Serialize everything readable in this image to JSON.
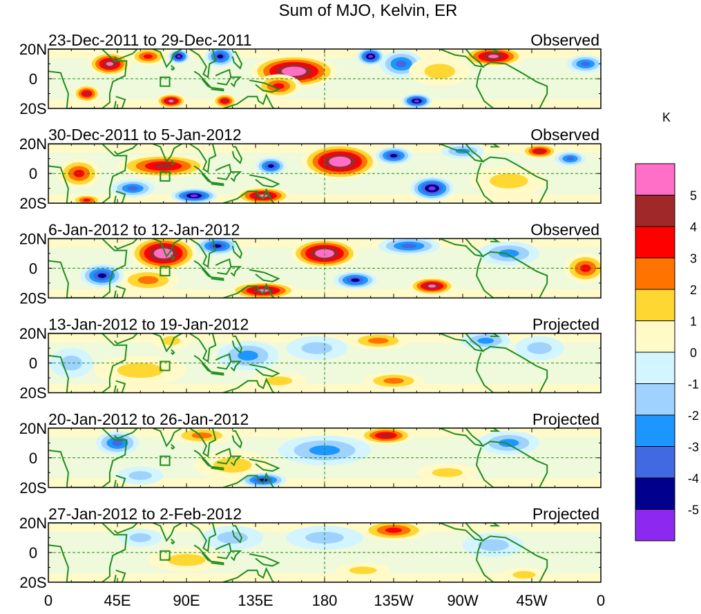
{
  "chart_data": {
    "type": "heatmap",
    "title": "Sum of MJO, Kelvin, ER",
    "units_label": "K",
    "y_ticks": [
      "20N",
      "0",
      "20S"
    ],
    "x_ticks": [
      "0",
      "45E",
      "90E",
      "135E",
      "180",
      "135W",
      "90W",
      "45W",
      "0"
    ],
    "xlim_deg": [
      0,
      360
    ],
    "ylim_deg": [
      -20,
      20
    ],
    "colorbar": {
      "labels": [
        "5",
        "4",
        "3",
        "2",
        "1",
        "0",
        "-1",
        "-2",
        "-3",
        "-4",
        "-5"
      ],
      "levels_top_to_bottom": [
        {
          "range": [
            5,
            99
          ],
          "color": "#ff6ec7"
        },
        {
          "range": [
            4,
            5
          ],
          "color": "#a02828"
        },
        {
          "range": [
            3,
            4
          ],
          "color": "#ff0000"
        },
        {
          "range": [
            2,
            3
          ],
          "color": "#ff7300"
        },
        {
          "range": [
            1,
            2
          ],
          "color": "#ffd732"
        },
        {
          "range": [
            0,
            1
          ],
          "color": "#fffac8"
        },
        {
          "range": [
            -1,
            0
          ],
          "color": "#d2f5ff"
        },
        {
          "range": [
            -2,
            -1
          ],
          "color": "#a0d2ff"
        },
        {
          "range": [
            -3,
            -2
          ],
          "color": "#1e96ff"
        },
        {
          "range": [
            -4,
            -3
          ],
          "color": "#4169e1"
        },
        {
          "range": [
            -5,
            -4
          ],
          "color": "#00008c"
        },
        {
          "range": [
            -99,
            -5
          ],
          "color": "#8c28f0"
        }
      ]
    },
    "panels": [
      {
        "period": "23-Dec-2011 to 29-Dec-2011",
        "status": "Observed",
        "anomalies": [
          {
            "lon": 40,
            "lat": 10,
            "value": 6.0,
            "rx": 14,
            "ry": 8
          },
          {
            "lon": 25,
            "lat": -10,
            "value": 4.5,
            "rx": 9,
            "ry": 6
          },
          {
            "lon": 65,
            "lat": 15,
            "value": 4.0,
            "rx": 12,
            "ry": 6
          },
          {
            "lon": 80,
            "lat": -15,
            "value": 5.5,
            "rx": 10,
            "ry": 5
          },
          {
            "lon": 115,
            "lat": -15,
            "value": 5.0,
            "rx": 8,
            "ry": 5
          },
          {
            "lon": 85,
            "lat": 15,
            "value": -6.0,
            "rx": 7,
            "ry": 5
          },
          {
            "lon": 112,
            "lat": 15,
            "value": -5.0,
            "rx": 10,
            "ry": 7
          },
          {
            "lon": 160,
            "lat": 5,
            "value": 6.5,
            "rx": 28,
            "ry": 11
          },
          {
            "lon": 150,
            "lat": -5,
            "value": 3.5,
            "rx": 15,
            "ry": 8
          },
          {
            "lon": 210,
            "lat": 15,
            "value": -6.0,
            "rx": 9,
            "ry": 6
          },
          {
            "lon": 230,
            "lat": 10,
            "value": -4.0,
            "rx": 14,
            "ry": 9
          },
          {
            "lon": 240,
            "lat": -15,
            "value": -5.5,
            "rx": 10,
            "ry": 5
          },
          {
            "lon": 290,
            "lat": 15,
            "value": 6.0,
            "rx": 20,
            "ry": 7
          },
          {
            "lon": 350,
            "lat": 10,
            "value": -4.0,
            "rx": 12,
            "ry": 6
          },
          {
            "lon": 255,
            "lat": 5,
            "value": 1.5,
            "rx": 20,
            "ry": 10
          }
        ]
      },
      {
        "period": "30-Dec-2011 to 5-Jan-2012",
        "status": "Observed",
        "anomalies": [
          {
            "lon": 20,
            "lat": 0,
            "value": 3.5,
            "rx": 14,
            "ry": 10
          },
          {
            "lon": 75,
            "lat": 5,
            "value": 4.5,
            "rx": 30,
            "ry": 8
          },
          {
            "lon": 55,
            "lat": -10,
            "value": -3.5,
            "rx": 14,
            "ry": 6
          },
          {
            "lon": 25,
            "lat": -18,
            "value": 4.0,
            "rx": 10,
            "ry": 4
          },
          {
            "lon": 95,
            "lat": -15,
            "value": -5.5,
            "rx": 15,
            "ry": 5
          },
          {
            "lon": 145,
            "lat": 5,
            "value": -5.0,
            "rx": 10,
            "ry": 6
          },
          {
            "lon": 140,
            "lat": -15,
            "value": 6.0,
            "rx": 18,
            "ry": 6
          },
          {
            "lon": 190,
            "lat": 8,
            "value": 6.5,
            "rx": 25,
            "ry": 12
          },
          {
            "lon": 225,
            "lat": 12,
            "value": -4.5,
            "rx": 12,
            "ry": 6
          },
          {
            "lon": 250,
            "lat": -10,
            "value": -5.5,
            "rx": 14,
            "ry": 8
          },
          {
            "lon": 270,
            "lat": 15,
            "value": -3.0,
            "rx": 14,
            "ry": 5
          },
          {
            "lon": 320,
            "lat": 15,
            "value": 4.5,
            "rx": 12,
            "ry": 5
          },
          {
            "lon": 340,
            "lat": 10,
            "value": -4.0,
            "rx": 10,
            "ry": 5
          },
          {
            "lon": 300,
            "lat": -5,
            "value": 1.5,
            "rx": 25,
            "ry": 10
          }
        ]
      },
      {
        "period": "6-Jan-2012 to 12-Jan-2012",
        "status": "Observed",
        "anomalies": [
          {
            "lon": 75,
            "lat": 10,
            "value": 6.5,
            "rx": 22,
            "ry": 12
          },
          {
            "lon": 65,
            "lat": -8,
            "value": 3.0,
            "rx": 20,
            "ry": 8
          },
          {
            "lon": 35,
            "lat": -5,
            "value": -4.5,
            "rx": 14,
            "ry": 8
          },
          {
            "lon": 110,
            "lat": 15,
            "value": -5.0,
            "rx": 14,
            "ry": 6
          },
          {
            "lon": 140,
            "lat": -15,
            "value": 6.0,
            "rx": 22,
            "ry": 6
          },
          {
            "lon": 180,
            "lat": 10,
            "value": 6.5,
            "rx": 22,
            "ry": 10
          },
          {
            "lon": 200,
            "lat": -8,
            "value": -4.5,
            "rx": 14,
            "ry": 6
          },
          {
            "lon": 250,
            "lat": -12,
            "value": 6.0,
            "rx": 15,
            "ry": 6
          },
          {
            "lon": 235,
            "lat": 15,
            "value": -4.0,
            "rx": 20,
            "ry": 6
          },
          {
            "lon": 350,
            "lat": 0,
            "value": 4.0,
            "rx": 14,
            "ry": 10
          },
          {
            "lon": 300,
            "lat": 10,
            "value": -3.0,
            "rx": 20,
            "ry": 8
          }
        ]
      },
      {
        "period": "13-Jan-2012 to 19-Jan-2012",
        "status": "Projected",
        "anomalies": [
          {
            "lon": 80,
            "lat": 15,
            "value": 2.0,
            "rx": 12,
            "ry": 6
          },
          {
            "lon": 60,
            "lat": -5,
            "value": 1.5,
            "rx": 30,
            "ry": 10
          },
          {
            "lon": 130,
            "lat": 5,
            "value": -2.5,
            "rx": 20,
            "ry": 10
          },
          {
            "lon": 175,
            "lat": 10,
            "value": -2.0,
            "rx": 20,
            "ry": 8
          },
          {
            "lon": 215,
            "lat": 15,
            "value": 2.5,
            "rx": 20,
            "ry": 6
          },
          {
            "lon": 225,
            "lat": -12,
            "value": 3.0,
            "rx": 20,
            "ry": 6
          },
          {
            "lon": 285,
            "lat": 15,
            "value": -2.5,
            "rx": 16,
            "ry": 6
          },
          {
            "lon": 320,
            "lat": 10,
            "value": -2.0,
            "rx": 16,
            "ry": 8
          },
          {
            "lon": 15,
            "lat": 0,
            "value": -2.0,
            "rx": 14,
            "ry": 10
          },
          {
            "lon": 150,
            "lat": -12,
            "value": 1.5,
            "rx": 18,
            "ry": 6
          }
        ]
      },
      {
        "period": "20-Jan-2012 to 26-Jan-2012",
        "status": "Projected",
        "anomalies": [
          {
            "lon": 45,
            "lat": 10,
            "value": -4.0,
            "rx": 14,
            "ry": 8
          },
          {
            "lon": 100,
            "lat": 15,
            "value": 2.5,
            "rx": 20,
            "ry": 6
          },
          {
            "lon": 120,
            "lat": -5,
            "value": 1.5,
            "rx": 25,
            "ry": 10
          },
          {
            "lon": 140,
            "lat": -15,
            "value": -4.5,
            "rx": 15,
            "ry": 5
          },
          {
            "lon": 220,
            "lat": 15,
            "value": 4.5,
            "rx": 18,
            "ry": 6
          },
          {
            "lon": 180,
            "lat": 5,
            "value": -2.5,
            "rx": 30,
            "ry": 10
          },
          {
            "lon": 260,
            "lat": -10,
            "value": 2.0,
            "rx": 20,
            "ry": 6
          },
          {
            "lon": 300,
            "lat": 10,
            "value": -2.5,
            "rx": 20,
            "ry": 8
          },
          {
            "lon": 60,
            "lat": -12,
            "value": -2.0,
            "rx": 15,
            "ry": 6
          }
        ]
      },
      {
        "period": "27-Jan-2012 to 2-Feb-2012",
        "status": "Projected",
        "anomalies": [
          {
            "lon": 225,
            "lat": 15,
            "value": 3.5,
            "rx": 22,
            "ry": 7
          },
          {
            "lon": 180,
            "lat": 10,
            "value": -2.0,
            "rx": 25,
            "ry": 8
          },
          {
            "lon": 120,
            "lat": 10,
            "value": -2.0,
            "rx": 20,
            "ry": 8
          },
          {
            "lon": 60,
            "lat": 10,
            "value": -2.0,
            "rx": 14,
            "ry": 6
          },
          {
            "lon": 90,
            "lat": -5,
            "value": 1.5,
            "rx": 25,
            "ry": 8
          },
          {
            "lon": 205,
            "lat": -12,
            "value": 1.5,
            "rx": 18,
            "ry": 5
          },
          {
            "lon": 290,
            "lat": 5,
            "value": -1.5,
            "rx": 20,
            "ry": 8
          },
          {
            "lon": 310,
            "lat": -15,
            "value": 1.5,
            "rx": 15,
            "ry": 5
          }
        ]
      }
    ]
  }
}
